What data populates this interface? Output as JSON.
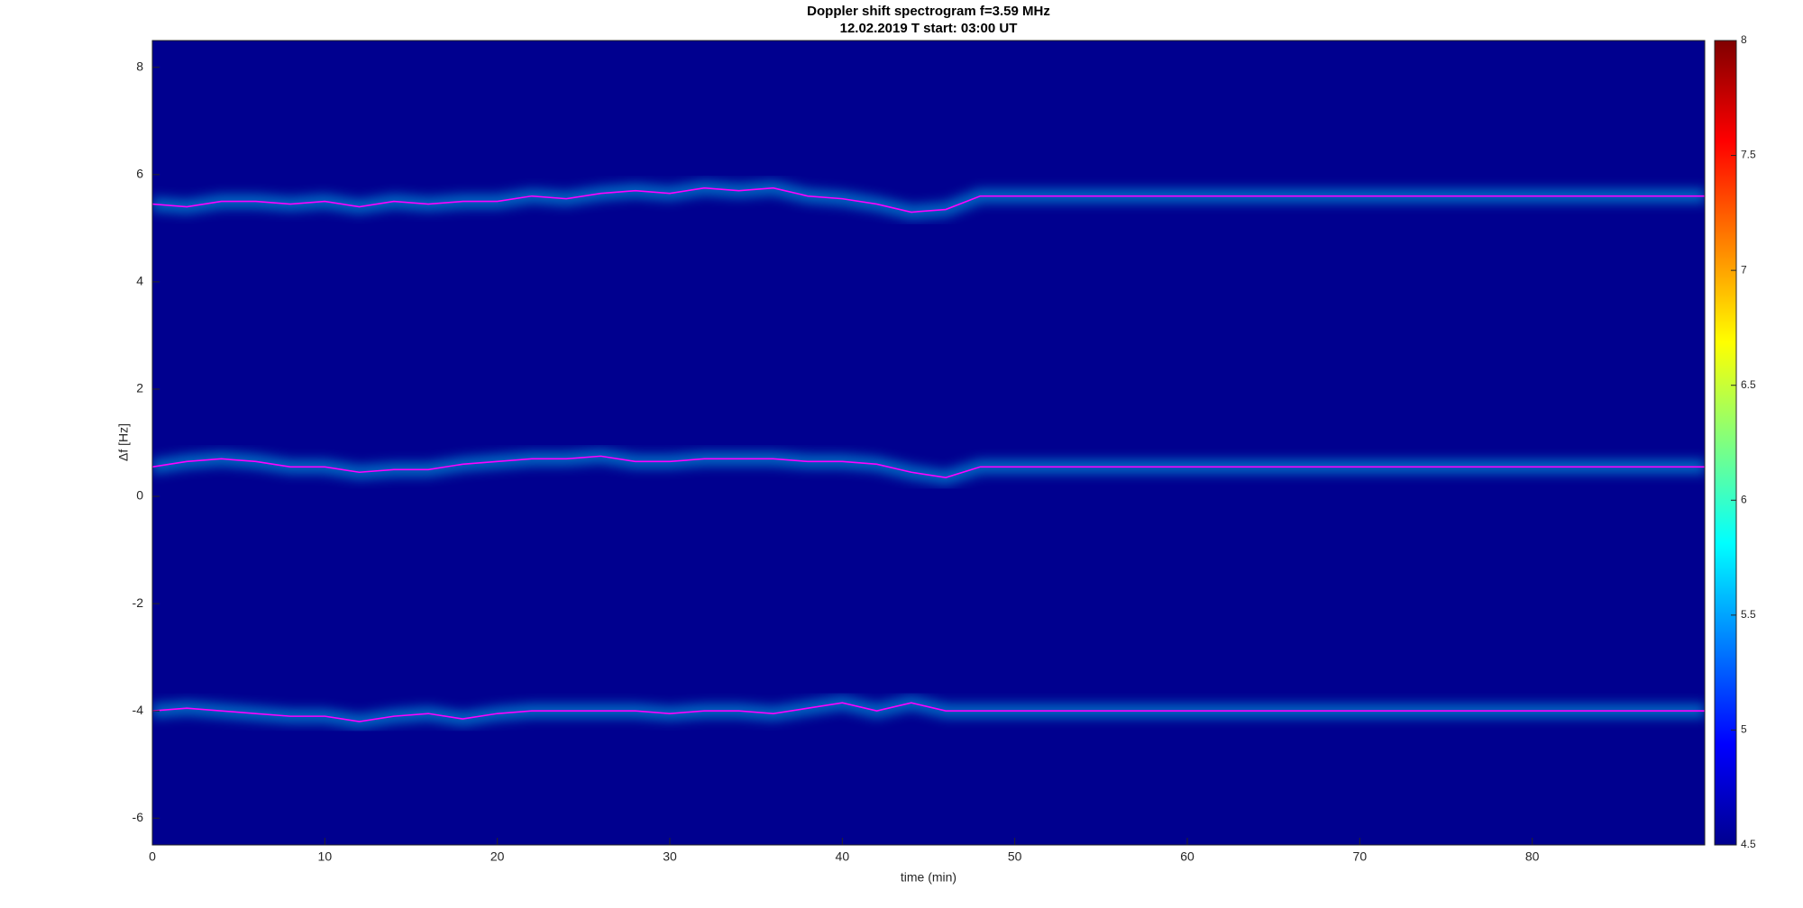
{
  "chart_data": {
    "type": "line",
    "title": "Doppler shift spectrogram f=3.59 MHz",
    "subtitle": "12.02.2019    T start: 03:00 UT",
    "x_label": "time (min)",
    "y_label": "Δf [Hz]",
    "x": [
      0,
      2,
      4,
      6,
      8,
      10,
      12,
      14,
      16,
      18,
      20,
      22,
      24,
      26,
      28,
      30,
      32,
      34,
      36,
      38,
      40,
      42,
      44,
      46,
      48,
      90
    ],
    "series": [
      {
        "color": "#ff00ff",
        "values": [
          5.45,
          5.4,
          5.5,
          5.5,
          5.45,
          5.5,
          5.4,
          5.5,
          5.45,
          5.5,
          5.5,
          5.6,
          5.55,
          5.65,
          5.7,
          5.65,
          5.75,
          5.7,
          5.75,
          5.6,
          5.55,
          5.45,
          5.3,
          5.35,
          5.6,
          5.6
        ]
      },
      {
        "color": "#ff00ff",
        "values": [
          0.55,
          0.65,
          0.7,
          0.65,
          0.55,
          0.55,
          0.45,
          0.5,
          0.5,
          0.6,
          0.65,
          0.7,
          0.7,
          0.75,
          0.65,
          0.65,
          0.7,
          0.7,
          0.7,
          0.65,
          0.65,
          0.6,
          0.45,
          0.35,
          0.55,
          0.55
        ]
      },
      {
        "color": "#ff00ff",
        "values": [
          -4.0,
          -3.95,
          -4.0,
          -4.05,
          -4.1,
          -4.1,
          -4.2,
          -4.1,
          -4.05,
          -4.15,
          -4.05,
          -4.0,
          -4.0,
          -4.0,
          -4.0,
          -4.05,
          -4.0,
          -4.0,
          -4.05,
          -3.95,
          -3.85,
          -4.0,
          -3.85,
          -4.0,
          -4.0,
          -4.0
        ]
      }
    ],
    "xlim": [
      0,
      90
    ],
    "xticks": [
      0,
      10,
      20,
      30,
      40,
      50,
      60,
      70,
      80
    ],
    "ylim": [
      -6.5,
      8.5
    ],
    "yticks": [
      -6,
      -4,
      -2,
      0,
      2,
      4,
      6,
      8
    ],
    "background_color": "#00008f",
    "colorbar": {
      "lim": [
        4.5,
        8
      ],
      "ticks": [
        4.5,
        5,
        5.5,
        6,
        6.5,
        7,
        7.5,
        8
      ]
    }
  }
}
